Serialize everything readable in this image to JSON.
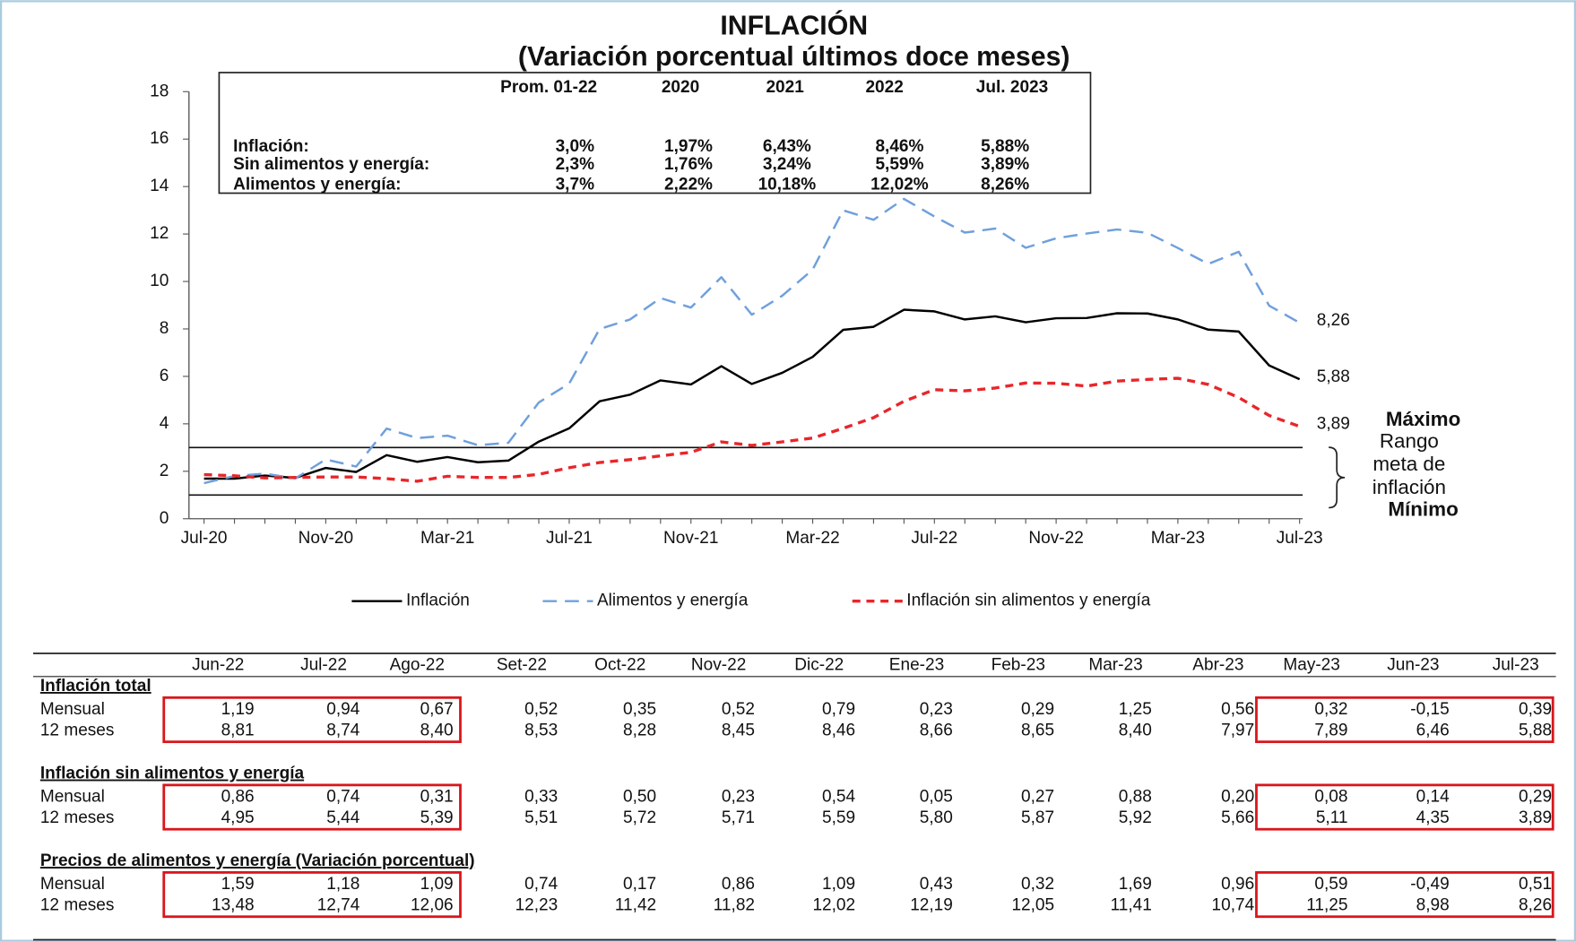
{
  "chart_data": {
    "type": "line",
    "title": "INFLACIÓN",
    "subtitle": "(Variación porcentual últimos doce meses)",
    "categories": [
      "Jul-20",
      null,
      null,
      null,
      "Nov-20",
      null,
      null,
      null,
      "Mar-21",
      null,
      null,
      null,
      "Jul-21",
      null,
      null,
      null,
      "Nov-21",
      null,
      null,
      null,
      "Mar-22",
      null,
      null,
      null,
      "Jul-22",
      null,
      null,
      null,
      "Nov-22",
      null,
      null,
      null,
      "Mar-23",
      null,
      null,
      null,
      "Jul-23"
    ],
    "series": [
      {
        "name": "Inflación",
        "color": "#000000",
        "line_style": "solid",
        "values": [
          1.69,
          1.69,
          1.82,
          1.72,
          2.14,
          1.97,
          2.68,
          2.4,
          2.6,
          2.38,
          2.45,
          3.25,
          3.81,
          4.95,
          5.23,
          5.83,
          5.66,
          6.43,
          5.68,
          6.15,
          6.82,
          7.96,
          8.09,
          8.81,
          8.74,
          8.4,
          8.53,
          8.28,
          8.45,
          8.46,
          8.66,
          8.65,
          8.4,
          7.97,
          7.89,
          6.46,
          5.88
        ],
        "value_labels": [
          null,
          null,
          null,
          null,
          null,
          null,
          null,
          null,
          null,
          null,
          null,
          null,
          null,
          null,
          null,
          null,
          null,
          null,
          null,
          null,
          null,
          null,
          null,
          null,
          null,
          null,
          null,
          null,
          null,
          null,
          null,
          null,
          null,
          null,
          null,
          null,
          "5,88"
        ]
      },
      {
        "name": "Alimentos y energía",
        "color": "#6fa0dc",
        "line_style": "dashed",
        "values": [
          1.5,
          1.8,
          1.9,
          1.7,
          2.5,
          2.2,
          3.8,
          3.4,
          3.5,
          3.1,
          3.2,
          4.9,
          5.7,
          8.0,
          8.4,
          9.3,
          8.9,
          10.18,
          8.6,
          9.4,
          10.5,
          13.0,
          12.6,
          13.48,
          12.74,
          12.06,
          12.23,
          11.42,
          11.82,
          12.02,
          12.19,
          12.05,
          11.41,
          10.74,
          11.25,
          8.98,
          8.26
        ],
        "value_labels": [
          null,
          null,
          null,
          null,
          null,
          null,
          null,
          null,
          null,
          null,
          null,
          null,
          null,
          null,
          null,
          null,
          null,
          null,
          null,
          null,
          null,
          null,
          null,
          null,
          null,
          null,
          null,
          null,
          null,
          null,
          null,
          null,
          null,
          null,
          null,
          null,
          "8,26"
        ]
      },
      {
        "name": "Inflación sin alimentos y energía",
        "color": "#e8262a",
        "line_style": "dashed",
        "values": [
          1.86,
          1.81,
          1.72,
          1.74,
          1.76,
          1.76,
          1.69,
          1.58,
          1.79,
          1.74,
          1.74,
          1.87,
          2.15,
          2.37,
          2.49,
          2.65,
          2.8,
          3.24,
          3.09,
          3.24,
          3.4,
          3.81,
          4.26,
          4.95,
          5.44,
          5.39,
          5.51,
          5.72,
          5.71,
          5.59,
          5.8,
          5.87,
          5.92,
          5.66,
          5.11,
          4.35,
          3.89
        ],
        "value_labels": [
          null,
          null,
          null,
          null,
          null,
          null,
          null,
          null,
          null,
          null,
          null,
          null,
          null,
          null,
          null,
          null,
          null,
          null,
          null,
          null,
          null,
          null,
          null,
          null,
          null,
          null,
          null,
          null,
          null,
          null,
          null,
          null,
          null,
          null,
          null,
          null,
          "3,89"
        ]
      }
    ],
    "ylim": [
      0,
      18
    ],
    "yticks": [
      0,
      2,
      4,
      6,
      8,
      10,
      12,
      14,
      16,
      18
    ],
    "reference_lines": [
      {
        "value": 3,
        "label": "Máximo"
      },
      {
        "value": 1,
        "label": "Mínimo"
      }
    ],
    "range_label": [
      "Rango",
      "meta de",
      "inflación"
    ],
    "legend": "bottom"
  },
  "summary_box": {
    "columns": [
      "Prom. 01-22",
      "2020",
      "2021",
      "2022",
      "Jul. 2023"
    ],
    "rows": [
      {
        "label": "Inflación:",
        "values": [
          "3,0%",
          "1,97%",
          "6,43%",
          "8,46%",
          "5,88%"
        ]
      },
      {
        "label": "Sin alimentos y energía:",
        "values": [
          "2,3%",
          "1,76%",
          "3,24%",
          "5,59%",
          "3,89%"
        ]
      },
      {
        "label": "Alimentos y energía:",
        "values": [
          "3,7%",
          "2,22%",
          "10,18%",
          "12,02%",
          "8,26%"
        ]
      }
    ]
  },
  "table": {
    "columns": [
      "Jun-22",
      "Jul-22",
      "Ago-22",
      "Set-22",
      "Oct-22",
      "Nov-22",
      "Dic-22",
      "Ene-23",
      "Feb-23",
      "Mar-23",
      "Abr-23",
      "May-23",
      "Jun-23",
      "Jul-23"
    ],
    "sections": [
      {
        "title": "Inflación total",
        "rows": [
          {
            "label": "Mensual",
            "values": [
              "1,19",
              "0,94",
              "0,67",
              "0,52",
              "0,35",
              "0,52",
              "0,79",
              "0,23",
              "0,29",
              "1,25",
              "0,56",
              "0,32",
              "-0,15",
              "0,39"
            ]
          },
          {
            "label": "12 meses",
            "values": [
              "8,81",
              "8,74",
              "8,40",
              "8,53",
              "8,28",
              "8,45",
              "8,46",
              "8,66",
              "8,65",
              "8,40",
              "7,97",
              "7,89",
              "6,46",
              "5,88"
            ]
          }
        ]
      },
      {
        "title": "Inflación sin alimentos y energía",
        "rows": [
          {
            "label": "Mensual",
            "values": [
              "0,86",
              "0,74",
              "0,31",
              "0,33",
              "0,50",
              "0,23",
              "0,54",
              "0,05",
              "0,27",
              "0,88",
              "0,20",
              "0,08",
              "0,14",
              "0,29"
            ]
          },
          {
            "label": "12 meses",
            "values": [
              "4,95",
              "5,44",
              "5,39",
              "5,51",
              "5,72",
              "5,71",
              "5,59",
              "5,80",
              "5,87",
              "5,92",
              "5,66",
              "5,11",
              "4,35",
              "3,89"
            ]
          }
        ]
      },
      {
        "title": "Precios de alimentos y energía (Variación porcentual)",
        "rows": [
          {
            "label": "Mensual",
            "values": [
              "1,59",
              "1,18",
              "1,09",
              "0,74",
              "0,17",
              "0,86",
              "1,09",
              "0,43",
              "0,32",
              "1,69",
              "0,96",
              "0,59",
              "-0,49",
              "0,51"
            ]
          },
          {
            "label": "12 meses",
            "values": [
              "13,48",
              "12,74",
              "12,06",
              "12,23",
              "11,42",
              "11,82",
              "12,02",
              "12,19",
              "12,05",
              "11,41",
              "10,74",
              "11,25",
              "8,98",
              "8,26"
            ]
          }
        ]
      }
    ]
  }
}
